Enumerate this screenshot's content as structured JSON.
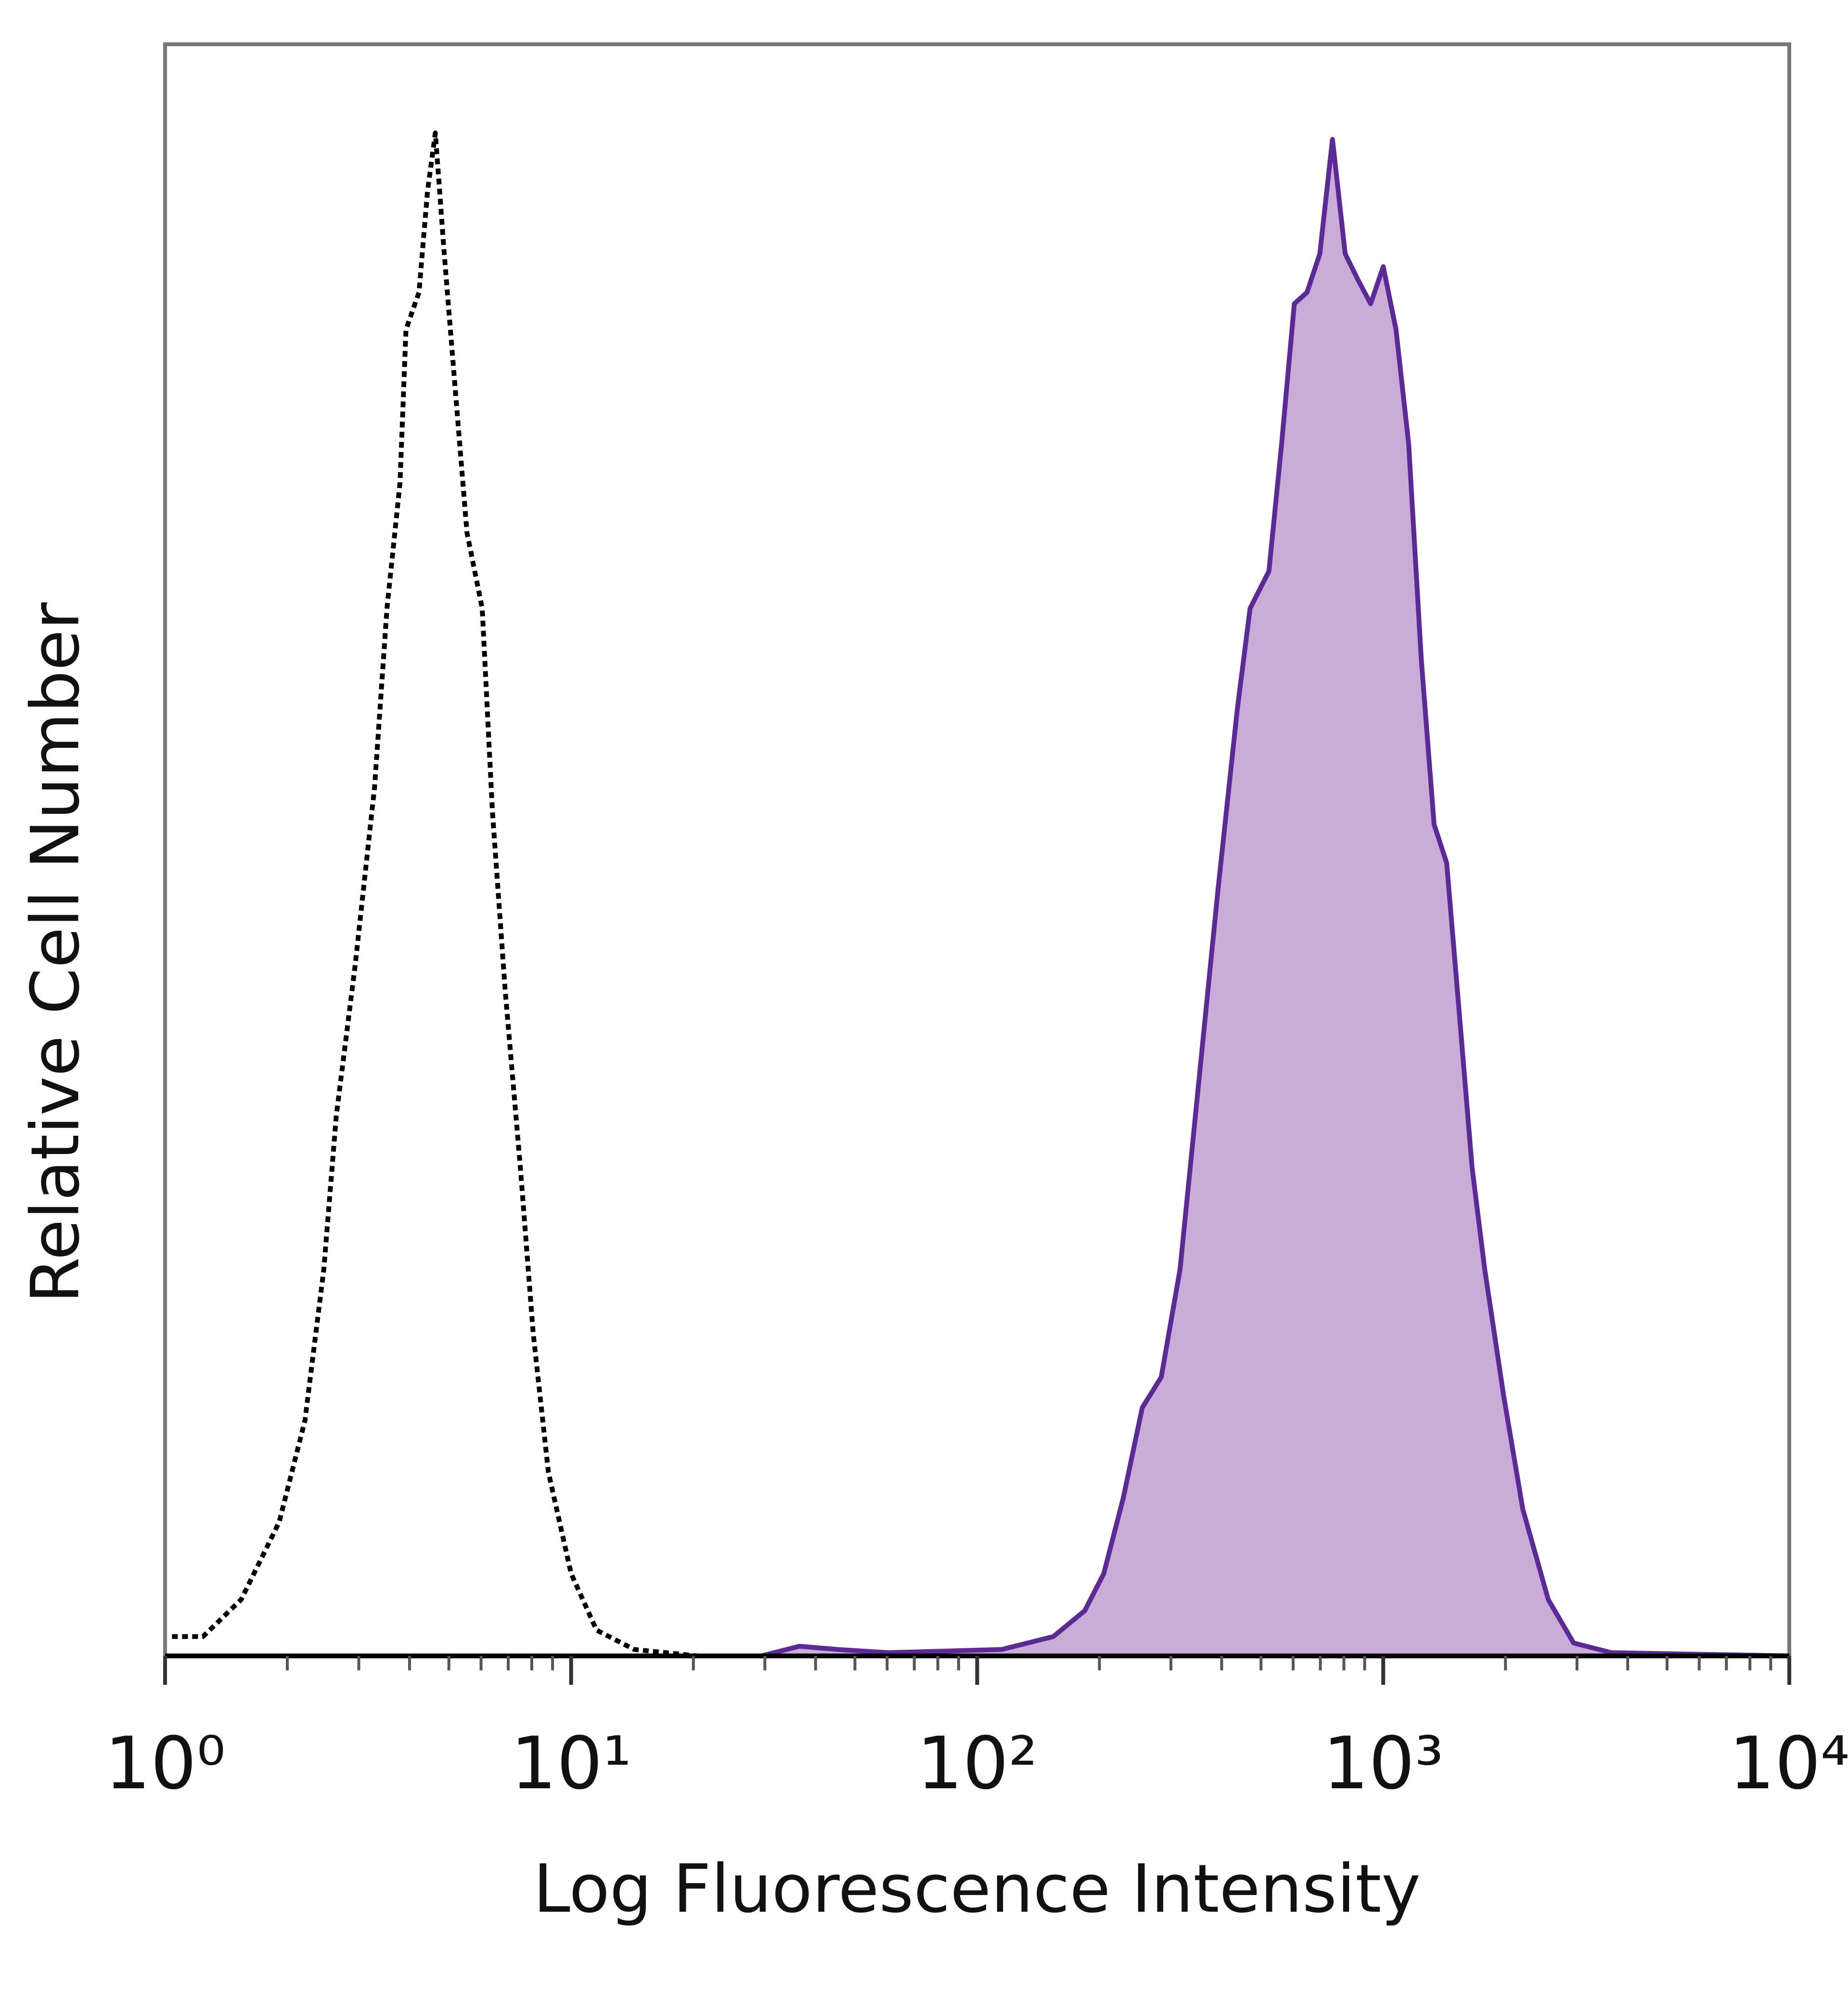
{
  "chart_data": {
    "type": "histogram-overlay",
    "xlabel": "Log Fluorescence Intensity",
    "ylabel": "Relative Cell Number",
    "xscale": "log",
    "xlim": [
      1,
      10000
    ],
    "ylim": [
      0,
      100
    ],
    "xticks": [
      {
        "value": 1,
        "label": "10⁰"
      },
      {
        "value": 10,
        "label": "10¹"
      },
      {
        "value": 100,
        "label": "10²"
      },
      {
        "value": 1000,
        "label": "10³"
      },
      {
        "value": 10000,
        "label": "10⁴"
      }
    ],
    "xminorticks": [
      2,
      3,
      4,
      5,
      6,
      7,
      8,
      9,
      20,
      30,
      40,
      50,
      60,
      70,
      80,
      90,
      200,
      300,
      400,
      500,
      600,
      700,
      800,
      900,
      2000,
      3000,
      4000,
      5000,
      6000,
      7000,
      8000,
      9000
    ],
    "series": [
      {
        "color": "#5b2a96",
        "fill": "#c9add6",
        "style": "solid",
        "x": [
          1,
          29.4,
          36.5,
          45.3,
          60.4,
          115,
          154,
          184,
          205,
          229,
          255,
          284,
          316,
          352,
          392,
          437,
          470,
          523,
          562,
          604,
          649,
          698,
          750,
          806,
          866,
          931,
          1000,
          1075,
          1155,
          1241,
          1334,
          1433,
          1540,
          1655,
          1778,
          1981,
          2207,
          2549,
          2944,
          3652,
          10000
        ],
        "values": [
          0,
          0,
          0.6,
          0.4,
          0.2,
          0.4,
          1.2,
          2.8,
          5.1,
          9.8,
          15.4,
          17.3,
          24,
          35.8,
          47.6,
          58.7,
          65,
          67.3,
          75.2,
          83.9,
          84.6,
          87,
          94.1,
          87,
          85.4,
          83.9,
          86.2,
          82.3,
          75.2,
          61.8,
          51.6,
          49.2,
          39.8,
          30.3,
          24,
          16.1,
          9.1,
          3.5,
          0.8,
          0.2,
          0
        ]
      },
      {
        "color": "#000000",
        "style": "dotted",
        "x": [
          1.04,
          1.24,
          1.54,
          1.91,
          2.21,
          2.46,
          2.64,
          2.94,
          3.28,
          3.52,
          3.79,
          3.92,
          4.22,
          4.43,
          4.63,
          4.87,
          5.16,
          5.54,
          6.04,
          6.4,
          6.88,
          7.5,
          8.06,
          8.79,
          10,
          11.55,
          14.3,
          20.5
        ],
        "values": [
          1.2,
          1.2,
          3.5,
          8.3,
          14.6,
          24,
          33.5,
          42.9,
          53.9,
          65,
          72.8,
          82.3,
          84.6,
          90.9,
          94.5,
          87,
          79.2,
          69.7,
          65,
          52.4,
          41.3,
          30.3,
          20.1,
          11.4,
          5.1,
          1.6,
          0.4,
          0
        ]
      }
    ]
  }
}
